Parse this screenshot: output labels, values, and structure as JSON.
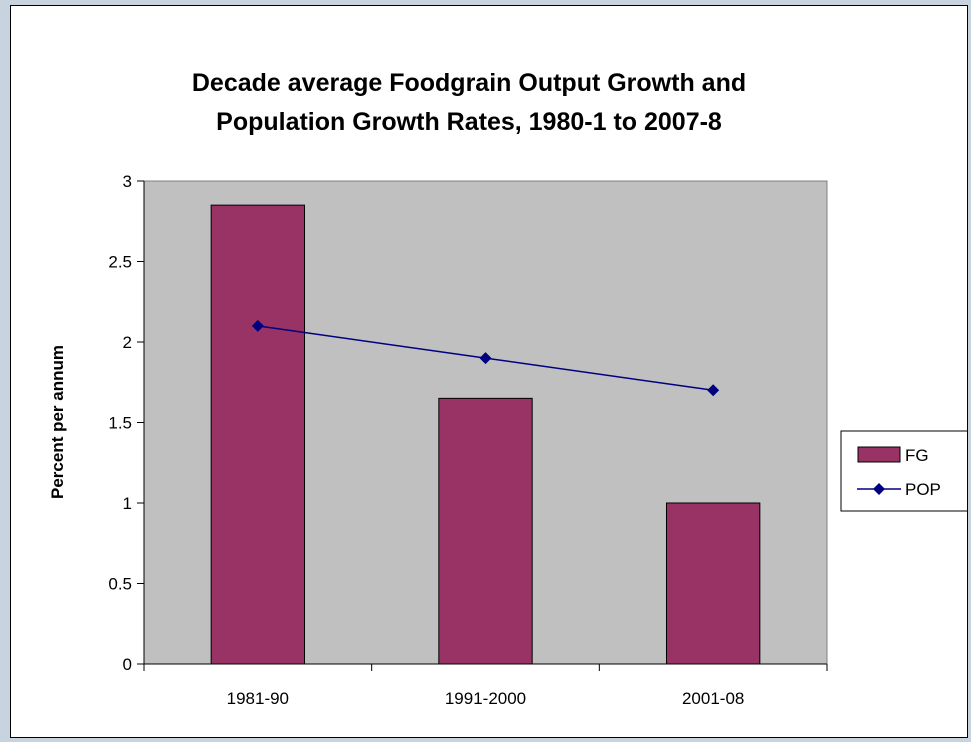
{
  "chart_data": {
    "type": "bar",
    "title_lines": [
      "Decade average Foodgrain Output Growth and",
      "Population Growth Rates, 1980-1 to 2007-8"
    ],
    "ylabel": "Percent per annum",
    "xlabel": "",
    "categories": [
      "1981-90",
      "1991-2000",
      "2001-08"
    ],
    "ylim": [
      0,
      3
    ],
    "yticks": [
      "0",
      "0.5",
      "1",
      "1.5",
      "2",
      "2.5",
      "3"
    ],
    "ytick_values": [
      0,
      0.5,
      1,
      1.5,
      2,
      2.5,
      3
    ],
    "series": [
      {
        "name": "FG",
        "kind": "bar",
        "values": [
          2.85,
          1.65,
          1.0
        ],
        "color": "#993366"
      },
      {
        "name": "POP",
        "kind": "line",
        "values": [
          2.1,
          1.9,
          1.7
        ],
        "color": "#000080"
      }
    ],
    "plot_background": "#c0c0c0",
    "grid": false,
    "legend": "right"
  }
}
